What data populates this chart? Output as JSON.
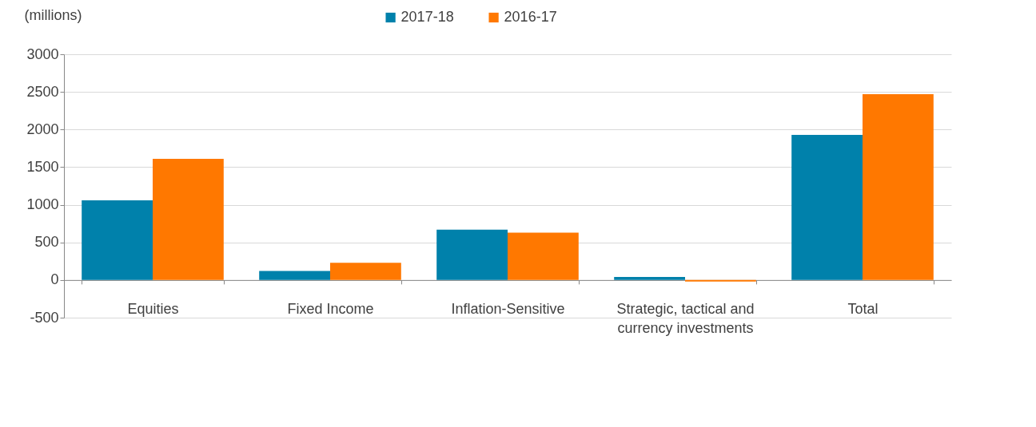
{
  "chart_data": {
    "type": "bar",
    "ylabel": "(millions)",
    "categories": [
      "Equities",
      "Fixed Income",
      "Inflation-Sensitive",
      "Strategic, tactical and currency investments",
      "Total"
    ],
    "series": [
      {
        "name": "2017-18",
        "color": "#0081ab",
        "values": [
          1060,
          120,
          670,
          40,
          1930
        ]
      },
      {
        "name": "2016-17",
        "color": "#ff7800",
        "values": [
          1610,
          230,
          630,
          -20,
          2470
        ]
      }
    ],
    "ylim": [
      -500,
      3000
    ],
    "yticks": [
      -500,
      0,
      500,
      1000,
      1500,
      2000,
      2500,
      3000
    ],
    "grid": "y",
    "legend": "top"
  }
}
